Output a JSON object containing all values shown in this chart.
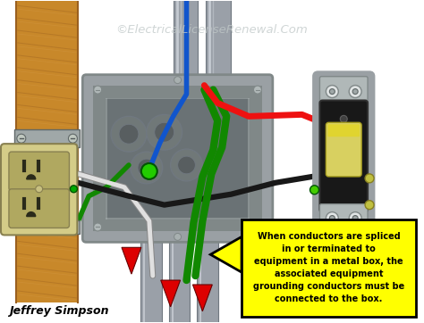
{
  "watermark": "©ElectricalLicenseRenewal.Com",
  "attribution": "Jeffrey Simpson",
  "callout_text": "When conductors are spliced\nin or terminated to\nequipment in a metal box, the\nassociated equipment\ngrounding conductors must be\nconnected to the box.",
  "callout_bg": "#FFFF00",
  "callout_border": "#000000",
  "bg_color": "#FFFFFF",
  "wood_color": "#C8882A",
  "wood_light": "#D8A050",
  "wood_dark": "#9A6020",
  "conduit_outer": "#B8BFC8",
  "conduit_mid": "#9AA0A8",
  "conduit_dark": "#707880",
  "conduit_light": "#D8DDE4",
  "box_outer": "#9AA0A4",
  "box_mid": "#808888",
  "box_inner": "#6A7275",
  "box_rim": "#A8B0B0",
  "knockout_outer": "#707878",
  "knockout_inner": "#585E60",
  "outlet_body": "#D4CC88",
  "outlet_dark": "#B0A860",
  "outlet_slot": "#2A2A1A",
  "switch_frame": "#9AA0A4",
  "switch_body": "#181818",
  "switch_toggle": "#D8D060",
  "switch_top": "#A8B0B0",
  "wire_red": "#EE1111",
  "wire_black": "#181818",
  "wire_white": "#E0E0E0",
  "wire_white_outline": "#A0A0A0",
  "wire_green": "#118800",
  "wire_blue": "#1155CC",
  "arrow_red": "#DD0000",
  "green_dot": "#22CC00"
}
